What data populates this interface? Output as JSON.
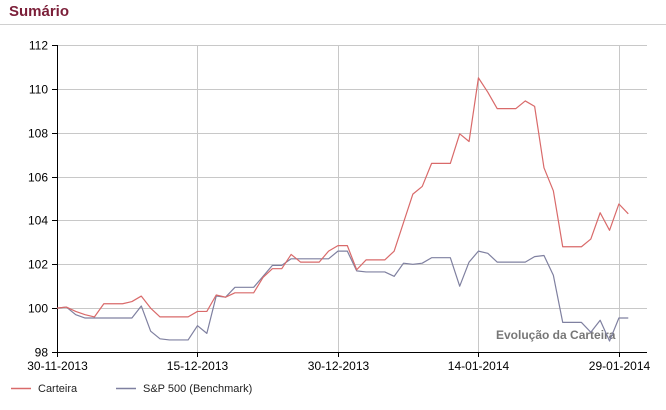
{
  "header": {
    "title": "Sumário"
  },
  "colors": {
    "title": "#7b1e38",
    "carteira": "#d96a6a",
    "benchmark": "#7f80a0",
    "grid": "#c8c8c8",
    "axis": "#000000"
  },
  "chart_data": {
    "type": "line",
    "title": "",
    "annotation": "Evolução da Carteira",
    "xlabel": "",
    "ylabel": "",
    "ylim": [
      98,
      112
    ],
    "yticks": [
      98,
      100,
      102,
      104,
      106,
      108,
      110,
      112
    ],
    "xlim": [
      "2013-11-30",
      "2014-02-01"
    ],
    "xticks": [
      "2013-11-30",
      "2013-12-15",
      "2013-12-30",
      "2014-01-14",
      "2014-01-29"
    ],
    "xtick_labels": [
      "30-11-2013",
      "15-12-2013",
      "30-12-2013",
      "14-01-2014",
      "29-01-2014"
    ],
    "grid": true,
    "legend_position": "bottom-left",
    "series": [
      {
        "name": "Carteira",
        "color": "#d96a6a",
        "points": [
          [
            "2013-11-30",
            100.0
          ],
          [
            "2013-12-01",
            100.05
          ],
          [
            "2013-12-02",
            99.85
          ],
          [
            "2013-12-03",
            99.7
          ],
          [
            "2013-12-04",
            99.6
          ],
          [
            "2013-12-05",
            100.2
          ],
          [
            "2013-12-06",
            100.2
          ],
          [
            "2013-12-07",
            100.2
          ],
          [
            "2013-12-08",
            100.3
          ],
          [
            "2013-12-09",
            100.55
          ],
          [
            "2013-12-10",
            100.0
          ],
          [
            "2013-12-11",
            99.6
          ],
          [
            "2013-12-12",
            99.6
          ],
          [
            "2013-12-13",
            99.6
          ],
          [
            "2013-12-14",
            99.6
          ],
          [
            "2013-12-15",
            99.85
          ],
          [
            "2013-12-16",
            99.85
          ],
          [
            "2013-12-17",
            100.6
          ],
          [
            "2013-12-18",
            100.5
          ],
          [
            "2013-12-19",
            100.7
          ],
          [
            "2013-12-20",
            100.7
          ],
          [
            "2013-12-21",
            100.7
          ],
          [
            "2013-12-22",
            101.4
          ],
          [
            "2013-12-23",
            101.8
          ],
          [
            "2013-12-24",
            101.8
          ],
          [
            "2013-12-25",
            102.45
          ],
          [
            "2013-12-26",
            102.1
          ],
          [
            "2013-12-27",
            102.1
          ],
          [
            "2013-12-28",
            102.1
          ],
          [
            "2013-12-29",
            102.6
          ],
          [
            "2013-12-30",
            102.85
          ],
          [
            "2013-12-31",
            102.85
          ],
          [
            "2014-01-01",
            101.75
          ],
          [
            "2014-01-02",
            102.2
          ],
          [
            "2014-01-03",
            102.2
          ],
          [
            "2014-01-04",
            102.2
          ],
          [
            "2014-01-05",
            102.6
          ],
          [
            "2014-01-06",
            103.9
          ],
          [
            "2014-01-07",
            105.2
          ],
          [
            "2014-01-08",
            105.55
          ],
          [
            "2014-01-09",
            106.6
          ],
          [
            "2014-01-10",
            106.6
          ],
          [
            "2014-01-11",
            106.6
          ],
          [
            "2014-01-12",
            107.95
          ],
          [
            "2014-01-13",
            107.6
          ],
          [
            "2014-01-14",
            110.5
          ],
          [
            "2014-01-15",
            109.85
          ],
          [
            "2014-01-16",
            109.1
          ],
          [
            "2014-01-17",
            109.1
          ],
          [
            "2014-01-18",
            109.1
          ],
          [
            "2014-01-19",
            109.45
          ],
          [
            "2014-01-20",
            109.2
          ],
          [
            "2014-01-21",
            106.4
          ],
          [
            "2014-01-22",
            105.35
          ],
          [
            "2014-01-23",
            102.8
          ],
          [
            "2014-01-24",
            102.8
          ],
          [
            "2014-01-25",
            102.8
          ],
          [
            "2014-01-26",
            103.15
          ],
          [
            "2014-01-27",
            104.35
          ],
          [
            "2014-01-28",
            103.55
          ],
          [
            "2014-01-29",
            104.75
          ],
          [
            "2014-01-30",
            104.3
          ]
        ]
      },
      {
        "name": "S&P 500 (Benchmark)",
        "color": "#7f80a0",
        "points": [
          [
            "2013-11-30",
            100.0
          ],
          [
            "2013-12-01",
            100.05
          ],
          [
            "2013-12-02",
            99.7
          ],
          [
            "2013-12-03",
            99.55
          ],
          [
            "2013-12-04",
            99.55
          ],
          [
            "2013-12-05",
            99.55
          ],
          [
            "2013-12-06",
            99.55
          ],
          [
            "2013-12-07",
            99.55
          ],
          [
            "2013-12-08",
            99.55
          ],
          [
            "2013-12-09",
            100.1
          ],
          [
            "2013-12-10",
            98.95
          ],
          [
            "2013-12-11",
            98.6
          ],
          [
            "2013-12-12",
            98.55
          ],
          [
            "2013-12-13",
            98.55
          ],
          [
            "2013-12-14",
            98.55
          ],
          [
            "2013-12-15",
            99.2
          ],
          [
            "2013-12-16",
            98.85
          ],
          [
            "2013-12-17",
            100.55
          ],
          [
            "2013-12-18",
            100.5
          ],
          [
            "2013-12-19",
            100.95
          ],
          [
            "2013-12-20",
            100.95
          ],
          [
            "2013-12-21",
            100.95
          ],
          [
            "2013-12-22",
            101.45
          ],
          [
            "2013-12-23",
            101.95
          ],
          [
            "2013-12-24",
            101.95
          ],
          [
            "2013-12-25",
            102.25
          ],
          [
            "2013-12-26",
            102.25
          ],
          [
            "2013-12-27",
            102.25
          ],
          [
            "2013-12-28",
            102.25
          ],
          [
            "2013-12-29",
            102.25
          ],
          [
            "2013-12-30",
            102.6
          ],
          [
            "2013-12-31",
            102.6
          ],
          [
            "2014-01-01",
            101.7
          ],
          [
            "2014-01-02",
            101.65
          ],
          [
            "2014-01-03",
            101.65
          ],
          [
            "2014-01-04",
            101.65
          ],
          [
            "2014-01-05",
            101.45
          ],
          [
            "2014-01-06",
            102.05
          ],
          [
            "2014-01-07",
            102.0
          ],
          [
            "2014-01-08",
            102.05
          ],
          [
            "2014-01-09",
            102.3
          ],
          [
            "2014-01-10",
            102.3
          ],
          [
            "2014-01-11",
            102.3
          ],
          [
            "2014-01-12",
            101.0
          ],
          [
            "2014-01-13",
            102.1
          ],
          [
            "2014-01-14",
            102.6
          ],
          [
            "2014-01-15",
            102.5
          ],
          [
            "2014-01-16",
            102.1
          ],
          [
            "2014-01-17",
            102.1
          ],
          [
            "2014-01-18",
            102.1
          ],
          [
            "2014-01-19",
            102.1
          ],
          [
            "2014-01-20",
            102.35
          ],
          [
            "2014-01-21",
            102.4
          ],
          [
            "2014-01-22",
            101.5
          ],
          [
            "2014-01-23",
            99.35
          ],
          [
            "2014-01-24",
            99.35
          ],
          [
            "2014-01-25",
            99.35
          ],
          [
            "2014-01-26",
            98.9
          ],
          [
            "2014-01-27",
            99.45
          ],
          [
            "2014-01-28",
            98.5
          ],
          [
            "2014-01-29",
            99.55
          ],
          [
            "2014-01-30",
            99.55
          ]
        ]
      }
    ]
  }
}
